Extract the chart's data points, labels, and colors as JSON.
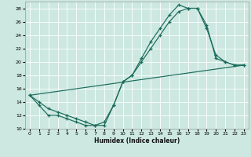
{
  "xlabel": "Humidex (Indice chaleur)",
  "bg_color": "#cce8e0",
  "grid_color": "#ffffff",
  "line_color": "#1a6b5a",
  "xlim": [
    -0.5,
    23.5
  ],
  "ylim": [
    10,
    29
  ],
  "xticks": [
    0,
    1,
    2,
    3,
    4,
    5,
    6,
    7,
    8,
    9,
    10,
    11,
    12,
    13,
    14,
    15,
    16,
    17,
    18,
    19,
    20,
    21,
    22,
    23
  ],
  "yticks": [
    10,
    12,
    14,
    16,
    18,
    20,
    22,
    24,
    26,
    28
  ],
  "line1_x": [
    0,
    1,
    2,
    3,
    4,
    5,
    6,
    7,
    8,
    9,
    10,
    11,
    12,
    13,
    14,
    15,
    16,
    17,
    18,
    19,
    20,
    21,
    22,
    23
  ],
  "line1_y": [
    15,
    13.5,
    12,
    12,
    11.5,
    11,
    10.5,
    10.5,
    11,
    13.5,
    17,
    18,
    20.5,
    23,
    25,
    27,
    28.5,
    28,
    28,
    25,
    21,
    20,
    19.5,
    19.5
  ],
  "line2_x": [
    0,
    1,
    2,
    3,
    4,
    5,
    6,
    7,
    8,
    9,
    10,
    11,
    12,
    13,
    14,
    15,
    16,
    17,
    18,
    19,
    20,
    21,
    22,
    23
  ],
  "line2_y": [
    15,
    14,
    13,
    12.5,
    12,
    11.5,
    11,
    10.5,
    10.5,
    13.5,
    17,
    18,
    20,
    22,
    24,
    26,
    27.5,
    28,
    28,
    25.5,
    20.5,
    20,
    19.5,
    19.5
  ],
  "line3_x": [
    0,
    23
  ],
  "line3_y": [
    15,
    19.5
  ],
  "xlabel_fontsize": 5.5,
  "tick_fontsize": 4.5
}
